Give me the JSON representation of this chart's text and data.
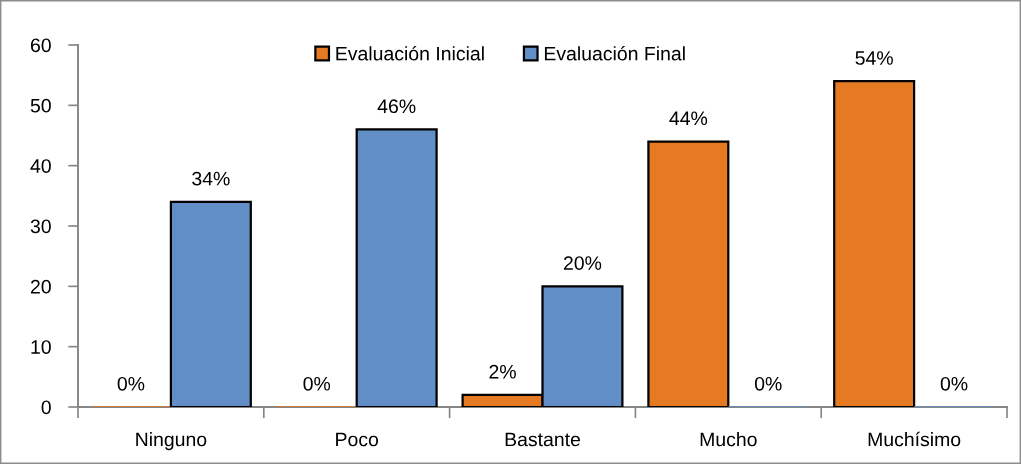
{
  "chart_data": {
    "type": "bar",
    "categories": [
      "Ninguno",
      "Poco",
      "Bastante",
      "Mucho",
      "Muchísimo"
    ],
    "series": [
      {
        "name": "Evaluación Inicial",
        "color": "#e67a23",
        "values": [
          0,
          0,
          2,
          44,
          54
        ],
        "value_labels": [
          "0%",
          "0%",
          "2%",
          "44%",
          "54%"
        ]
      },
      {
        "name": "Evaluación Final",
        "color": "#618ec6",
        "values": [
          34,
          46,
          20,
          0,
          0
        ],
        "value_labels": [
          "34%",
          "46%",
          "20%",
          "0%",
          "0%"
        ]
      }
    ],
    "ylim": [
      0,
      60
    ],
    "yticks": [
      0,
      10,
      20,
      30,
      40,
      50,
      60
    ],
    "grid": false,
    "legend": "top"
  }
}
